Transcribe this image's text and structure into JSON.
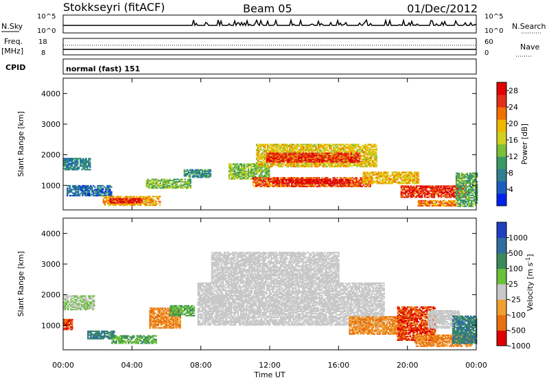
{
  "header": {
    "station": "Stokkseyri (fitACF)",
    "beam": "Beam 05",
    "date": "01/Dec/2012"
  },
  "status_panels": {
    "nsky_label": "N.Sky",
    "nsky_ticks": [
      "10^5",
      "10^0"
    ],
    "nsearch_label": "N.Search",
    "nsearch_ticks": [
      "10^5",
      "10^0"
    ],
    "freq_label": "Freq.",
    "freq_unit": "[MHz]",
    "freq_ticks": [
      "18",
      "8"
    ],
    "nave_label": "Nave",
    "nave_ticks": [
      "60",
      "0"
    ],
    "cpid_label": "CPID",
    "cpid_value": "normal (fast) 151"
  },
  "chart_data": [
    {
      "type": "heatmap",
      "name": "power",
      "ylabel": "Slant Range [km]",
      "ylim": [
        200,
        4500
      ],
      "yticks": [
        "1000",
        "2000",
        "3000",
        "4000"
      ],
      "xlim": [
        0,
        24
      ],
      "xticks": [
        "00:00",
        "04:00",
        "08:00",
        "12:00",
        "16:00",
        "20:00",
        "00:00"
      ],
      "colorbar": {
        "label": "Power [dB]",
        "ticks": [
          "4",
          "8",
          "12",
          "16",
          "20",
          "24",
          "28"
        ],
        "range": [
          0,
          30
        ],
        "colors": [
          "#0022ee",
          "#1a5fbf",
          "#2f7f8f",
          "#3a9a64",
          "#7cbf3a",
          "#d0d020",
          "#f0b800",
          "#f07000",
          "#e23018",
          "#e00000"
        ]
      },
      "regions": [
        {
          "t0": 0.0,
          "t1": 1.6,
          "r0": 1500,
          "r1": 1900,
          "v": 8
        },
        {
          "t0": 0.2,
          "t1": 2.8,
          "r0": 650,
          "r1": 1000,
          "v": 6
        },
        {
          "t0": 2.3,
          "t1": 5.6,
          "r0": 340,
          "r1": 640,
          "v": 20
        },
        {
          "t0": 2.7,
          "t1": 4.6,
          "r0": 420,
          "r1": 560,
          "v": 27
        },
        {
          "t0": 4.8,
          "t1": 7.4,
          "r0": 900,
          "r1": 1200,
          "v": 13
        },
        {
          "t0": 7.0,
          "t1": 8.6,
          "r0": 1250,
          "r1": 1500,
          "v": 9
        },
        {
          "t0": 9.6,
          "t1": 12.0,
          "r0": 1200,
          "r1": 1700,
          "v": 14
        },
        {
          "t0": 11.2,
          "t1": 18.2,
          "r0": 1600,
          "r1": 2350,
          "v": 18
        },
        {
          "t0": 11.8,
          "t1": 17.2,
          "r0": 1750,
          "r1": 2050,
          "v": 26
        },
        {
          "t0": 11.0,
          "t1": 17.8,
          "r0": 950,
          "r1": 1250,
          "v": 24
        },
        {
          "t0": 12.2,
          "t1": 16.6,
          "r0": 1050,
          "r1": 1200,
          "v": 29
        },
        {
          "t0": 17.4,
          "t1": 20.6,
          "r0": 1050,
          "r1": 1450,
          "v": 19
        },
        {
          "t0": 19.6,
          "t1": 23.4,
          "r0": 600,
          "r1": 1000,
          "v": 26
        },
        {
          "t0": 20.6,
          "t1": 22.8,
          "r0": 320,
          "r1": 520,
          "v": 22
        },
        {
          "t0": 22.8,
          "t1": 24.0,
          "r0": 300,
          "r1": 1400,
          "v": 12
        }
      ]
    },
    {
      "type": "heatmap",
      "name": "velocity",
      "ylabel": "Slant Range [km]",
      "ylim": [
        200,
        4500
      ],
      "yticks": [
        "1000",
        "2000",
        "3000",
        "4000"
      ],
      "xlim": [
        0,
        24
      ],
      "xticks": [
        "00:00",
        "04:00",
        "08:00",
        "12:00",
        "16:00",
        "20:00",
        "00:00"
      ],
      "xlabel": "Time UT",
      "colorbar": {
        "label": "Velocity [m s^-1]",
        "ticks": [
          "1000",
          "500",
          "100",
          "25",
          "-25",
          "-100",
          "-500",
          "-1000"
        ],
        "colors": [
          "#1f3fbf",
          "#2f6f9f",
          "#3a8a5a",
          "#6ac03a",
          "#c8c8c8",
          "#f0a030",
          "#e87010",
          "#e00000"
        ]
      },
      "regions": [
        {
          "t0": 0.0,
          "t1": 1.8,
          "r0": 1500,
          "r1": 1950,
          "v": 25
        },
        {
          "t0": 0.0,
          "t1": 0.5,
          "r0": 850,
          "r1": 1200,
          "v": -500
        },
        {
          "t0": 1.4,
          "t1": 3.0,
          "r0": 550,
          "r1": 800,
          "v": 500
        },
        {
          "t0": 2.8,
          "t1": 5.4,
          "r0": 400,
          "r1": 650,
          "v": 100
        },
        {
          "t0": 5.0,
          "t1": 6.8,
          "r0": 900,
          "r1": 1550,
          "v": -100
        },
        {
          "t0": 6.2,
          "t1": 7.6,
          "r0": 1300,
          "r1": 1650,
          "v": 100
        },
        {
          "t0": 7.8,
          "t1": 18.6,
          "r0": 1000,
          "r1": 2400,
          "v": 0
        },
        {
          "t0": 8.6,
          "t1": 16.0,
          "r0": 2400,
          "r1": 3400,
          "v": 0
        },
        {
          "t0": 16.6,
          "t1": 19.8,
          "r0": 700,
          "r1": 1300,
          "v": -100
        },
        {
          "t0": 19.4,
          "t1": 21.6,
          "r0": 500,
          "r1": 1600,
          "v": -500
        },
        {
          "t0": 20.4,
          "t1": 23.8,
          "r0": 300,
          "r1": 700,
          "v": -100
        },
        {
          "t0": 21.2,
          "t1": 23.0,
          "r0": 900,
          "r1": 1500,
          "v": 0
        },
        {
          "t0": 22.6,
          "t1": 24.0,
          "r0": 400,
          "r1": 1300,
          "v": 500
        }
      ]
    }
  ]
}
